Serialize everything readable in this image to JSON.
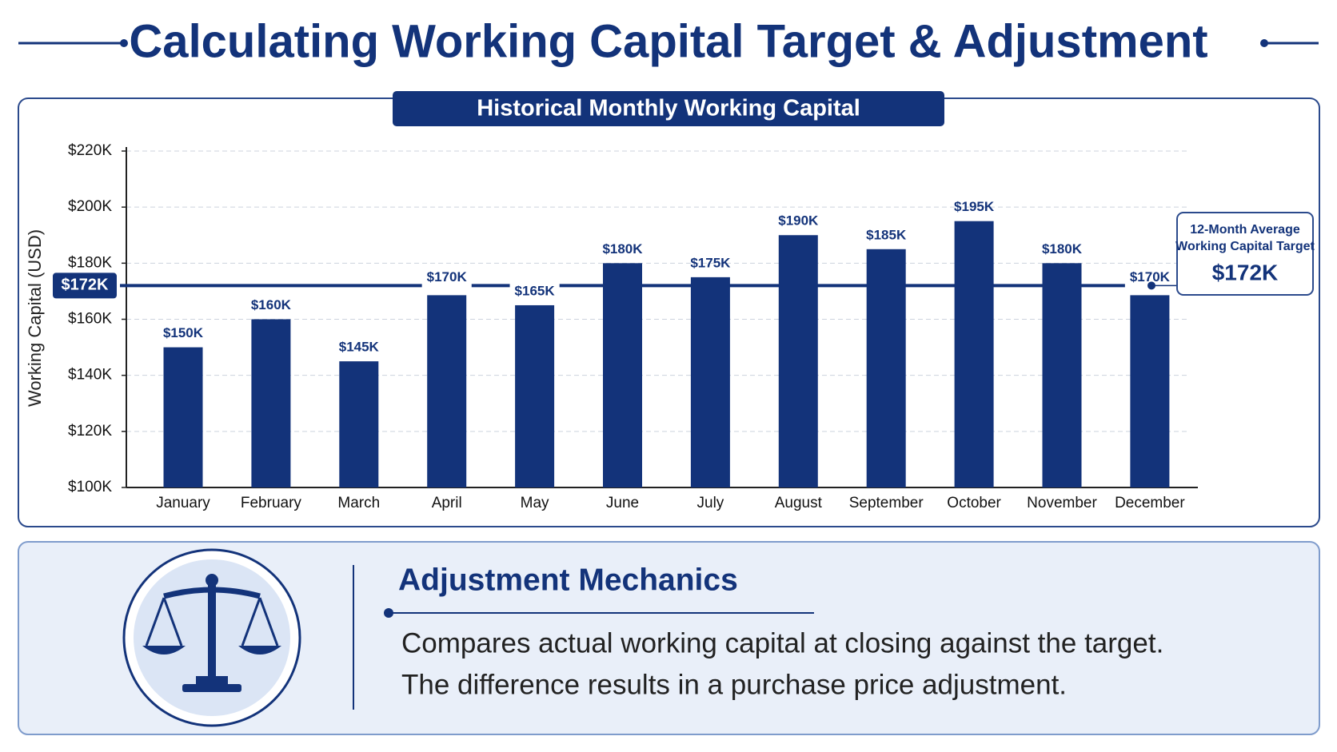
{
  "header": {
    "title": "Calculating Working Capital Target & Adjustment"
  },
  "chart_data": {
    "type": "bar",
    "title": "Historical Monthly Working Capital",
    "ylabel": "Working Capital (USD)",
    "categories": [
      "January",
      "February",
      "March",
      "April",
      "May",
      "June",
      "July",
      "August",
      "September",
      "October",
      "November",
      "December"
    ],
    "values": [
      150,
      160,
      145,
      170,
      165,
      180,
      175,
      190,
      185,
      195,
      180,
      170
    ],
    "value_labels": [
      "$150K",
      "$160K",
      "$145K",
      "$170K",
      "$165K",
      "$180K",
      "$175K",
      "$190K",
      "$185K",
      "$195K",
      "$180K",
      "$170K"
    ],
    "color": "#13337a",
    "ylim": [
      100,
      220
    ],
    "yticks": [
      {
        "value": 100,
        "label": "$100K"
      },
      {
        "value": 120,
        "label": "$120K"
      },
      {
        "value": 140,
        "label": "$140K"
      },
      {
        "value": 160,
        "label": "$160K"
      },
      {
        "value": 180,
        "label": "$180K"
      },
      {
        "value": 200,
        "label": "$200K"
      },
      {
        "value": 220,
        "label": "$220K"
      }
    ],
    "grid": true,
    "reference_line": {
      "value": 172,
      "label": "$172K",
      "annotation": [
        "12-Month Average",
        "Working Capital Target"
      ]
    }
  },
  "panel": {
    "title": "Adjustment Mechanics",
    "lines": [
      "Compares actual working capital at closing against the target.",
      "The difference results in a purchase price adjustment."
    ]
  }
}
